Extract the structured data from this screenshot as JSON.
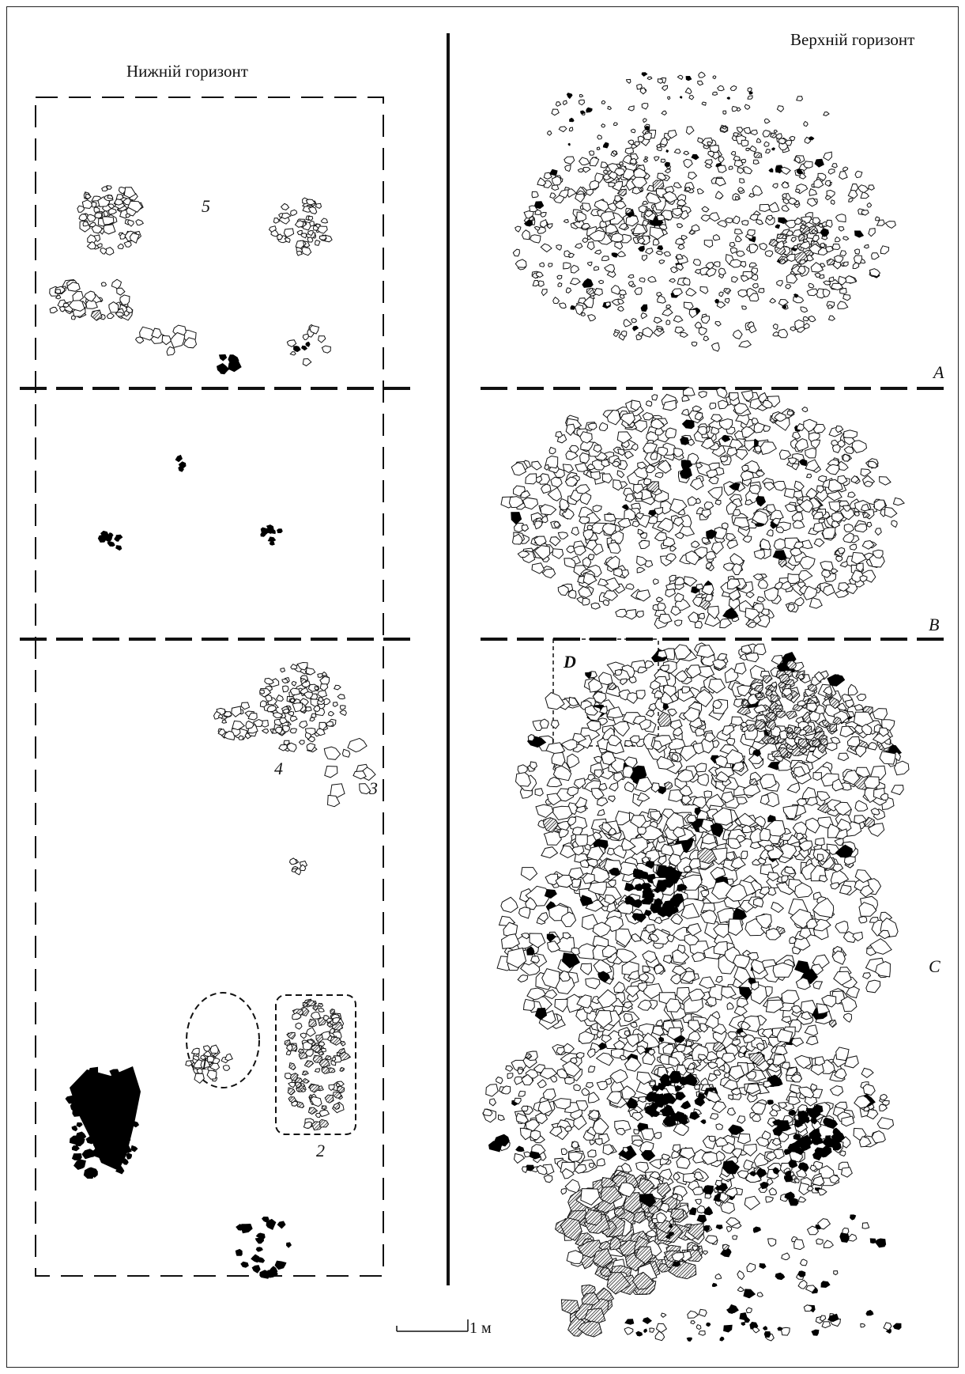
{
  "lower_horizon": {
    "title": "Нижній горизонт",
    "feature_labels": [
      "1",
      "2",
      "3",
      "4",
      "5"
    ]
  },
  "upper_horizon": {
    "title": "Верхній горизонт",
    "zone_labels": [
      "A",
      "B",
      "C",
      "D"
    ]
  },
  "scale_bar": {
    "label": "1 м"
  },
  "legend_styles": {
    "outline_stone": "#ffffff",
    "black_fragment": "#000000",
    "hatched_fill": "#555555",
    "line_color": "#111111"
  }
}
